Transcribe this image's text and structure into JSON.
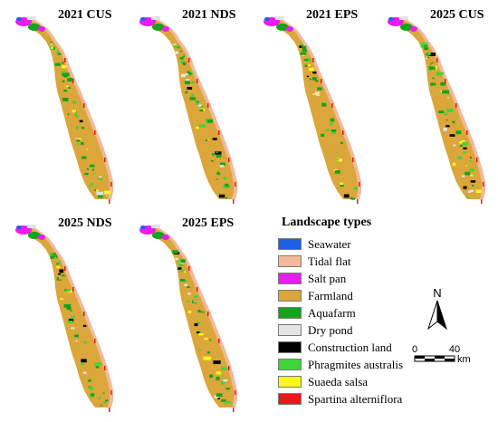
{
  "panels": [
    {
      "title": "2021 CUS"
    },
    {
      "title": "2021 NDS"
    },
    {
      "title": "2021 EPS"
    },
    {
      "title": "2025 CUS"
    },
    {
      "title": "2025 NDS"
    },
    {
      "title": "2025 EPS"
    }
  ],
  "legend": {
    "title": "Landscape types",
    "items": [
      {
        "label": "Seawater",
        "color": "#1f5fe6"
      },
      {
        "label": "Tidal flat",
        "color": "#f2b99a"
      },
      {
        "label": "Salt pan",
        "color": "#e81cf0"
      },
      {
        "label": "Farmland",
        "color": "#dba63a"
      },
      {
        "label": "Aquafarm",
        "color": "#16a21c"
      },
      {
        "label": "Dry pond",
        "color": "#e4e4e4"
      },
      {
        "label": "Construction land",
        "color": "#000000"
      },
      {
        "label": "Phragmites australis",
        "color": "#3fd43a"
      },
      {
        "label": "Suaeda salsa",
        "color": "#f8f81c"
      },
      {
        "label": "Spartina alterniflora",
        "color": "#ee1616"
      }
    ]
  },
  "north_arrow": {
    "label": "N"
  },
  "scale_bar": {
    "start_label": "0",
    "end_label": "40",
    "unit": "km"
  }
}
